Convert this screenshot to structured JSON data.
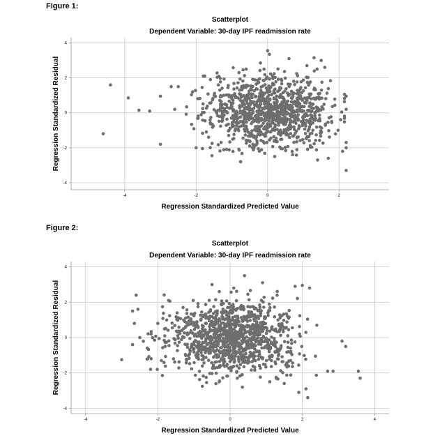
{
  "figures": [
    {
      "label": "Figure 1:"
    },
    {
      "label": "Figure 2:"
    }
  ],
  "chart_data": [
    {
      "type": "scatter",
      "title": "Scatterplot",
      "subtitle": "Dependent Variable: 30-day IPF readmission rate",
      "xlabel": "Regression Standardized Predicted Value",
      "ylabel": "Regression Standardized Residual",
      "xlim": [
        -5.5,
        3.4
      ],
      "ylim": [
        -4.4,
        4.3
      ],
      "xticks": [
        -4,
        -2,
        0,
        2
      ],
      "yticks": [
        -4,
        -2,
        0,
        2,
        4
      ],
      "grid": true,
      "point_color": "#6e6e6e",
      "n_points": 1100,
      "points_sample": [
        [
          -4.6,
          -1.2
        ],
        [
          -4.4,
          1.6
        ],
        [
          -3.9,
          0.85
        ],
        [
          -3.6,
          0.15
        ],
        [
          -3.3,
          0.1
        ],
        [
          -3.0,
          -1.8
        ],
        [
          -3.0,
          0.95
        ],
        [
          -2.7,
          1.5
        ],
        [
          -2.6,
          0.2
        ],
        [
          -2.5,
          1.5
        ],
        [
          -2.1,
          1.2
        ],
        [
          -2.0,
          -2.0
        ],
        [
          -1.8,
          2.1
        ],
        [
          -1.6,
          1.9
        ],
        [
          -1.3,
          -1.7
        ],
        [
          -0.8,
          2.3
        ],
        [
          -0.6,
          2.5
        ],
        [
          -0.2,
          2.85
        ],
        [
          0.0,
          3.55
        ],
        [
          0.05,
          3.35
        ],
        [
          0.6,
          3.1
        ],
        [
          1.1,
          2.7
        ],
        [
          1.3,
          3.15
        ],
        [
          1.5,
          3.0
        ],
        [
          1.6,
          2.6
        ],
        [
          0.2,
          -2.5
        ],
        [
          0.7,
          -2.4
        ],
        [
          1.4,
          -2.7
        ],
        [
          1.7,
          -2.6
        ],
        [
          2.1,
          -2.2
        ],
        [
          2.2,
          -3.3
        ],
        [
          2.2,
          0.95
        ],
        [
          2.2,
          -1.7
        ],
        [
          2.2,
          -2.0
        ],
        [
          2.2,
          0.2
        ],
        [
          -0.3,
          0.4
        ],
        [
          0.3,
          -0.2
        ],
        [
          0.9,
          0.1
        ],
        [
          -0.9,
          -0.3
        ],
        [
          1.2,
          -0.5
        ]
      ]
    },
    {
      "type": "scatter",
      "title": "Scatterplot",
      "subtitle": "Dependent Variable: 30-day IPF readmission rate",
      "xlabel": "Regression Standardized Predicted Value",
      "ylabel": "Regression Standardized Residual",
      "xlim": [
        -4.4,
        4.4
      ],
      "ylim": [
        -4.3,
        4.3
      ],
      "xticks": [
        -4,
        -2,
        0,
        2,
        4
      ],
      "yticks": [
        -4,
        -2,
        0,
        2,
        4
      ],
      "grid": true,
      "point_color": "#6e6e6e",
      "n_points": 1150,
      "points_sample": [
        [
          -3.0,
          -1.25
        ],
        [
          -2.7,
          1.5
        ],
        [
          -2.65,
          0.8
        ],
        [
          -2.6,
          2.4
        ],
        [
          -2.55,
          1.6
        ],
        [
          -2.7,
          -0.4
        ],
        [
          -2.5,
          0.0
        ],
        [
          -2.2,
          -1.8
        ],
        [
          -2.0,
          0.8
        ],
        [
          -1.9,
          -1.3
        ],
        [
          -1.7,
          2.1
        ],
        [
          -1.3,
          1.7
        ],
        [
          -0.5,
          3.0
        ],
        [
          -0.3,
          2.6
        ],
        [
          0.1,
          2.8
        ],
        [
          0.4,
          3.5
        ],
        [
          0.9,
          3.1
        ],
        [
          1.3,
          2.4
        ],
        [
          1.8,
          2.9
        ],
        [
          2.0,
          2.95
        ],
        [
          2.2,
          2.8
        ],
        [
          -0.3,
          -2.5
        ],
        [
          0.2,
          -2.3
        ],
        [
          1.1,
          -2.5
        ],
        [
          1.5,
          -2.6
        ],
        [
          1.9,
          -3.1
        ],
        [
          2.1,
          -2.9
        ],
        [
          2.15,
          -3.4
        ],
        [
          2.7,
          -1.9
        ],
        [
          2.85,
          -1.9
        ],
        [
          3.1,
          -0.2
        ],
        [
          3.2,
          -0.5
        ],
        [
          3.55,
          -1.9
        ],
        [
          3.6,
          -2.3
        ],
        [
          2.4,
          0.7
        ],
        [
          -0.5,
          0.4
        ],
        [
          0.2,
          -0.1
        ],
        [
          0.8,
          0.3
        ],
        [
          -1.0,
          -0.4
        ],
        [
          1.4,
          -0.6
        ]
      ]
    }
  ]
}
